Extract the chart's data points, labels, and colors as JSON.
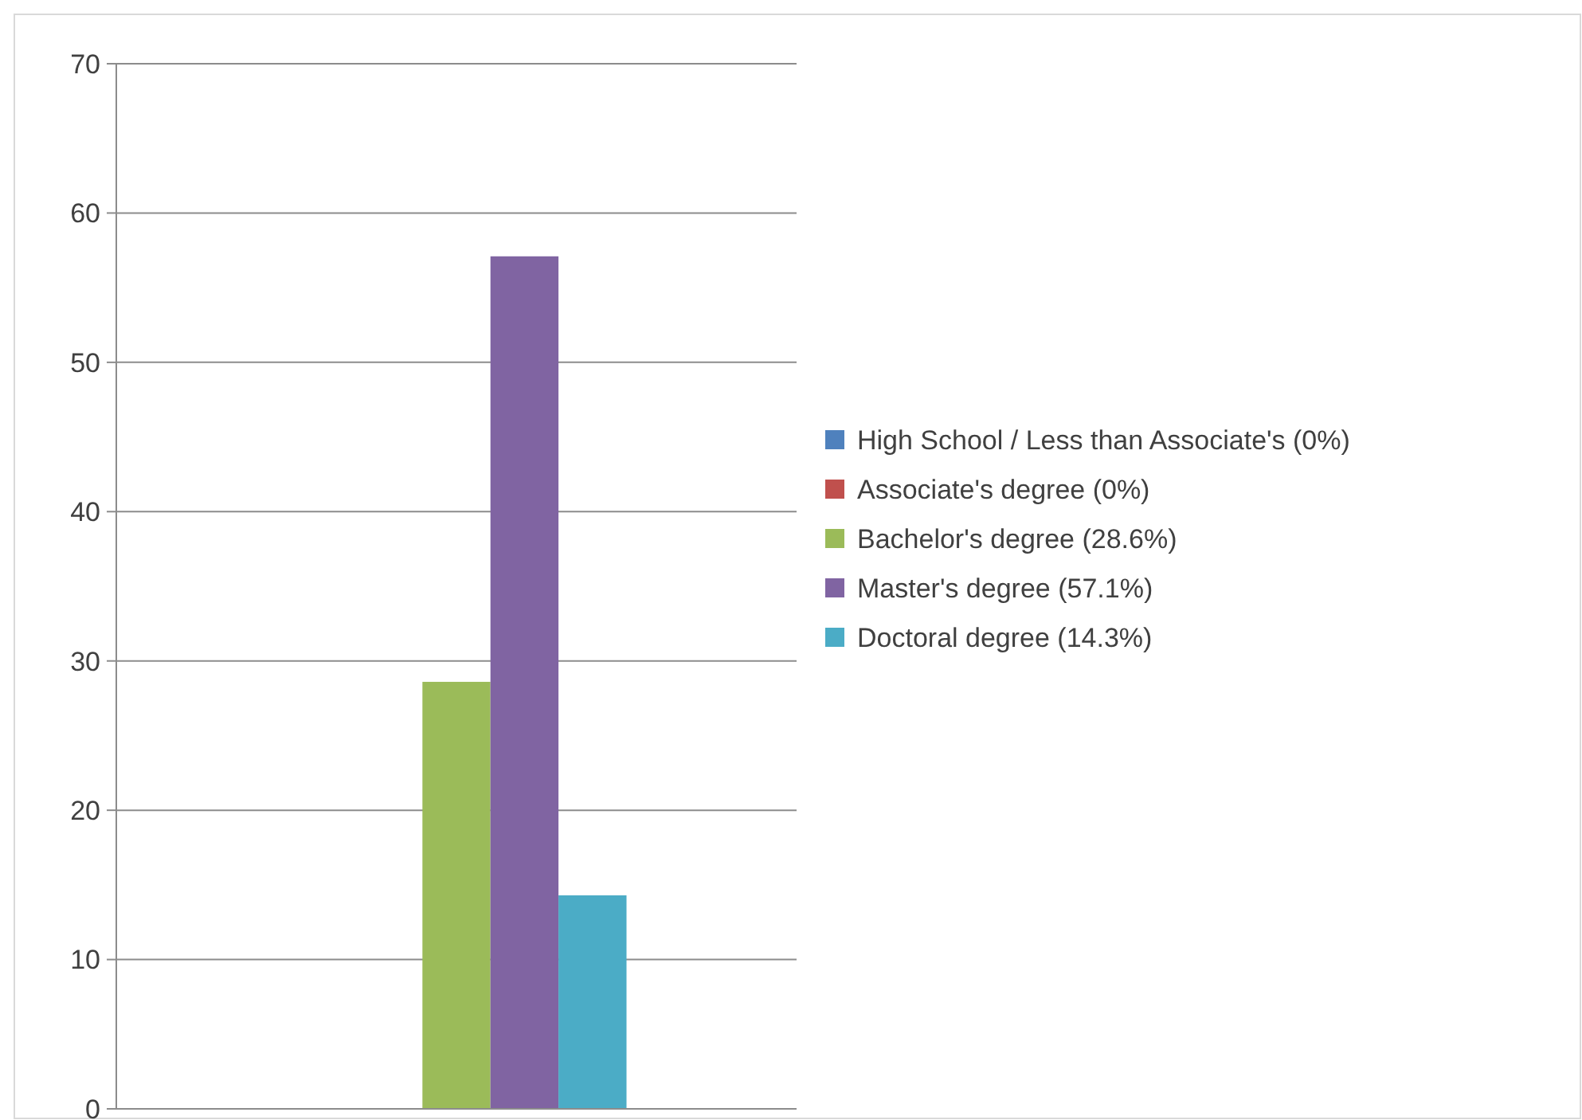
{
  "chart_data": {
    "type": "bar",
    "categories": [
      null
    ],
    "series": [
      {
        "name": "High School / Less than Associate's (0%)",
        "color": "#4f81bd",
        "values": [
          0
        ]
      },
      {
        "name": "Associate's degree (0%)",
        "color": "#c0504d",
        "values": [
          0
        ]
      },
      {
        "name": "Bachelor's degree (28.6%)",
        "color": "#9bbb59",
        "values": [
          28.6
        ]
      },
      {
        "name": "Master's degree (57.1%)",
        "color": "#8064a2",
        "values": [
          57.1
        ]
      },
      {
        "name": "Doctoral degree (14.3%)",
        "color": "#4bacc6",
        "values": [
          14.3
        ]
      }
    ],
    "ylim": [
      0,
      70
    ],
    "yticks": [
      0,
      10,
      20,
      30,
      40,
      50,
      60,
      70
    ],
    "grid": "y",
    "legend": "right"
  }
}
